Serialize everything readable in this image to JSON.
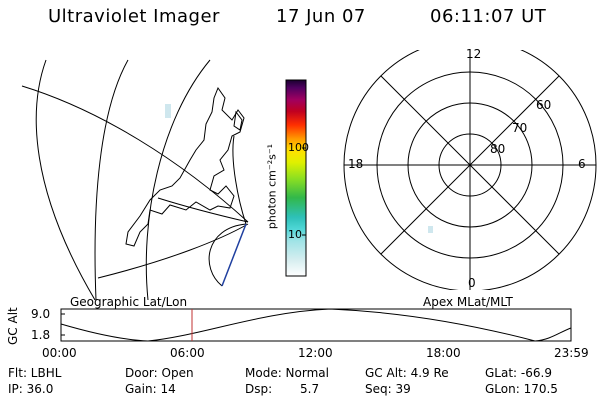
{
  "header": {
    "title": "Ultraviolet Imager",
    "date": "17 Jun 07",
    "time": "06:11:07 UT"
  },
  "map_panel": {
    "label": "Geographic Lat/Lon"
  },
  "colorbar": {
    "axis_label": "photon cm⁻²s⁻¹",
    "tick_labels": [
      "100",
      "10"
    ]
  },
  "polar_panel": {
    "label": "Apex MLat/MLT",
    "mlt_labels": {
      "top": "12",
      "left": "18",
      "right": "6",
      "bottom": "0"
    },
    "lat_labels": [
      "60",
      "70",
      "80"
    ]
  },
  "timeline": {
    "axis_label": "GC Alt",
    "y_ticks": [
      "9.0",
      "1.8"
    ],
    "x_ticks": [
      "00:00",
      "06:00",
      "12:00",
      "18:00",
      "23:59"
    ]
  },
  "status": {
    "filter": "Flt: LBHL",
    "ip": "IP: 36.0",
    "door": "Door: Open",
    "gain": "Gain: 14",
    "mode": "Mode: Normal",
    "dsp_label": "Dsp:",
    "dsp_value": "5.7",
    "gc_alt": "GC Alt: 4.9 Re",
    "seq": "Seq: 39",
    "glat": "GLat: -66.9",
    "glon": "GLon: 170.5"
  }
}
